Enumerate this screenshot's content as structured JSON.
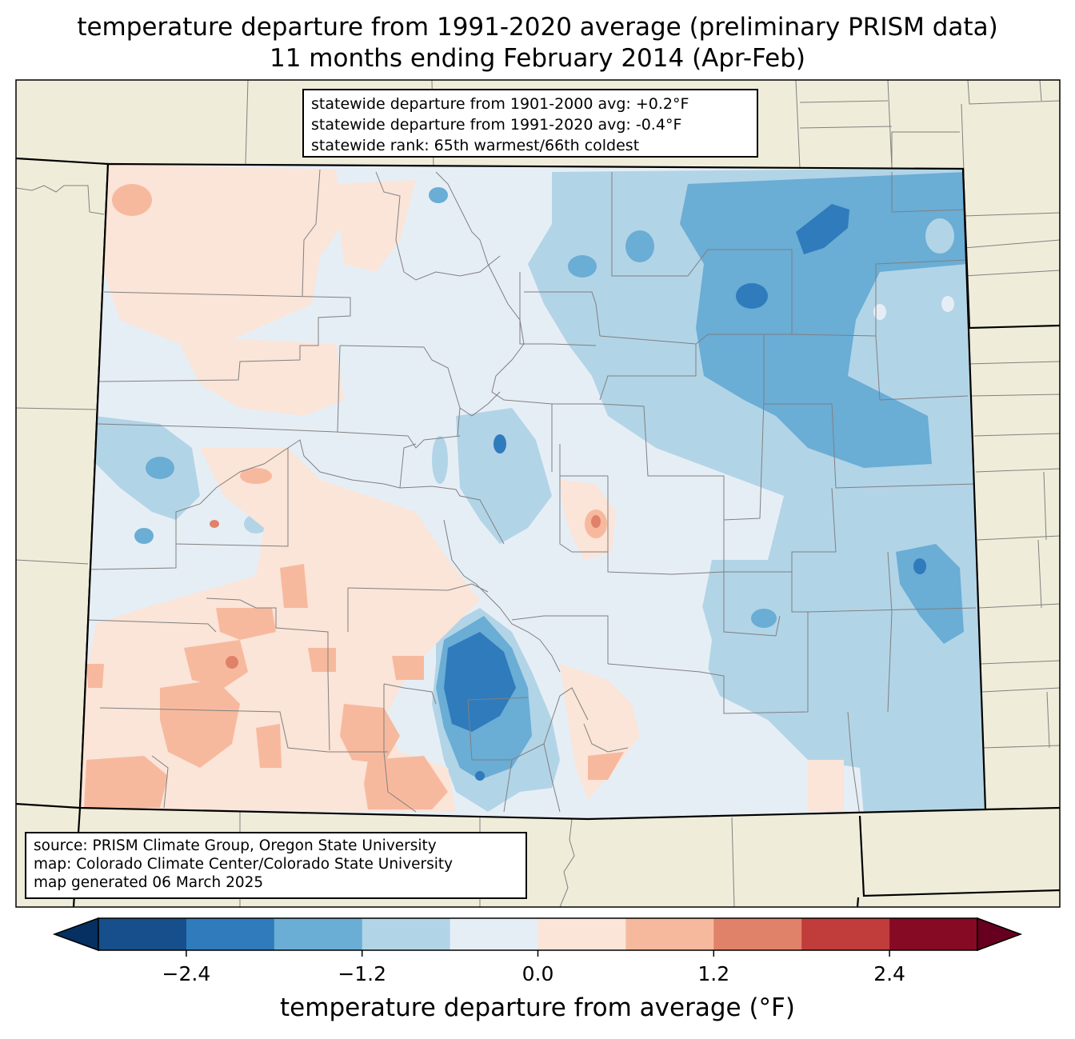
{
  "title": {
    "line1": "temperature departure from 1991-2020 average (preliminary PRISM data)",
    "line2": "11 months ending February 2014 (Apr-Feb)"
  },
  "stats_box": {
    "line1": "statewide departure from 1901-2000 avg: +0.2°F",
    "line2": "statewide departure from 1991-2020 avg: -0.4°F",
    "line3": "statewide rank: 65th warmest/66th coldest"
  },
  "source_box": {
    "line1": "source: PRISM Climate Group, Oregon State University",
    "line2": "map: Colorado Climate Center/Colorado State University",
    "line3": "map generated 06 March 2025"
  },
  "colorbar": {
    "label": "temperature departure from average (°F)",
    "ticks": [
      "−2.4",
      "−1.2",
      "0.0",
      "1.2",
      "2.4"
    ],
    "colors": [
      "#164f8b",
      "#2f7bbc",
      "#6aadd5",
      "#b2d4e7",
      "#e6eef5",
      "#fbe4d8",
      "#f7b99e",
      "#e08169",
      "#c13d3c",
      "#870a24"
    ],
    "under_color": "#053061",
    "over_color": "#67001f"
  },
  "map_colors": {
    "land": "#efedda",
    "borders": "#000000",
    "counties": "#808080"
  }
}
